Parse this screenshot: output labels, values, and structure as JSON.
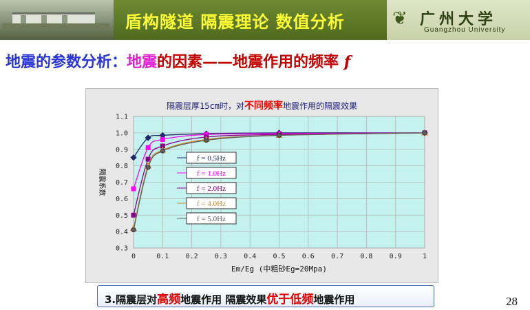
{
  "banner": {
    "title": "盾构隧道 隔震理论 数值分析",
    "logo_cn": "广州大学",
    "logo_en": "Guangzhou University",
    "logo_icon": "university-emblem-icon"
  },
  "heading": {
    "part1": "地震的参数分析：",
    "part2": "地震",
    "part3": "的因素——地震作用的频率",
    "symbol": "f"
  },
  "chart_title": {
    "prefix": "隔震层厚15cm时，对",
    "highlight": "不同频率",
    "suffix": "地震作用的隔震效果"
  },
  "bottom_box": {
    "part1": "3.隔震层对",
    "highlight1": "高频",
    "part2": "地震作用  隔震效果",
    "highlight2": "优于低频",
    "part3": "地震作用"
  },
  "page_number": "28",
  "chart_data": {
    "type": "line",
    "title": "隔震层厚15cm时，对不同频率地震作用的隔震效果",
    "xlabel": "Em/Eg (中粗砂Eg=20Mpa)",
    "ylabel": "隔震系数",
    "xlim": [
      0,
      1
    ],
    "ylim": [
      0.3,
      1.1
    ],
    "x_ticks": [
      "0",
      "0.1",
      "0.2",
      "0.3",
      "0.4",
      "0.5",
      "0.6",
      "0.7",
      "0.8",
      "0.9",
      "1"
    ],
    "y_ticks": [
      "0.3",
      "0.4",
      "0.5",
      "0.6",
      "0.7",
      "0.8",
      "0.9",
      "1.0",
      "1.1"
    ],
    "grid": true,
    "legend_position": "center-left",
    "series": [
      {
        "name": "f = 0.5Hz",
        "color": "#1f2a66",
        "marker": "diamond",
        "x": [
          0.0,
          0.05,
          0.1,
          0.25,
          0.5,
          1.0
        ],
        "y": [
          0.85,
          0.97,
          0.985,
          0.995,
          1.0,
          1.0
        ]
      },
      {
        "name": "f = 1.0Hz",
        "color": "#ff00ff",
        "marker": "square",
        "x": [
          0.0,
          0.05,
          0.1,
          0.25,
          0.5,
          1.0
        ],
        "y": [
          0.66,
          0.91,
          0.96,
          0.99,
          0.995,
          1.0
        ]
      },
      {
        "name": "f = 2.0Hz",
        "color": "#8b008b",
        "marker": "square",
        "x": [
          0.0,
          0.05,
          0.1,
          0.25,
          0.5,
          1.0
        ],
        "y": [
          0.5,
          0.84,
          0.92,
          0.975,
          0.99,
          1.0
        ]
      },
      {
        "name": "f = 4.0Hz",
        "color": "#cc8a2c",
        "marker": "triangle",
        "x": [
          0.0,
          0.05,
          0.1,
          0.25,
          0.5,
          1.0
        ],
        "y": [
          0.42,
          0.8,
          0.895,
          0.96,
          0.985,
          1.0
        ]
      },
      {
        "name": "f = 5.0Hz",
        "color": "#606060",
        "marker": "circle",
        "x": [
          0.0,
          0.05,
          0.1,
          0.25,
          0.5,
          1.0
        ],
        "y": [
          0.41,
          0.79,
          0.89,
          0.955,
          0.985,
          1.0
        ]
      }
    ]
  }
}
